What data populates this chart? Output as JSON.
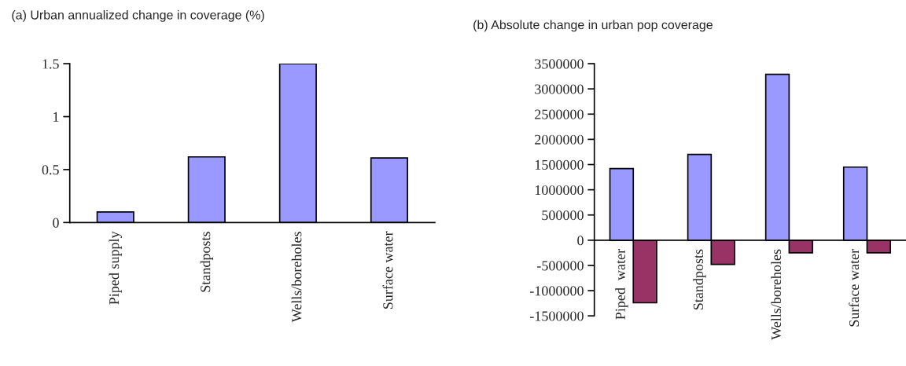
{
  "chart_data": [
    {
      "type": "bar",
      "title": "(a) Urban annualized change in coverage (%)",
      "categories": [
        "Piped supply",
        "Standposts",
        "Wells/boreholes",
        "Surface water"
      ],
      "series": [
        {
          "color": "#9999ff",
          "values": [
            0.1,
            0.62,
            1.5,
            0.61
          ]
        }
      ],
      "ylim": [
        0,
        1.5
      ],
      "yticks": [
        0,
        0.5,
        1,
        1.5
      ]
    },
    {
      "type": "bar",
      "title": "(b) Absolute change in urban pop coverage",
      "categories": [
        "Piped  water",
        "Standposts",
        "Wells/boreholes",
        "Surface water"
      ],
      "series": [
        {
          "color": "#9999ff",
          "values": [
            1420000,
            1700000,
            3290000,
            1450000
          ]
        },
        {
          "color": "#993366",
          "values": [
            -1240000,
            -480000,
            -250000,
            -250000
          ]
        }
      ],
      "ylim": [
        -1500000,
        3500000
      ],
      "yticks": [
        -1500000,
        -1000000,
        -500000,
        0,
        500000,
        1000000,
        1500000,
        2000000,
        2500000,
        3000000,
        3500000
      ]
    }
  ]
}
